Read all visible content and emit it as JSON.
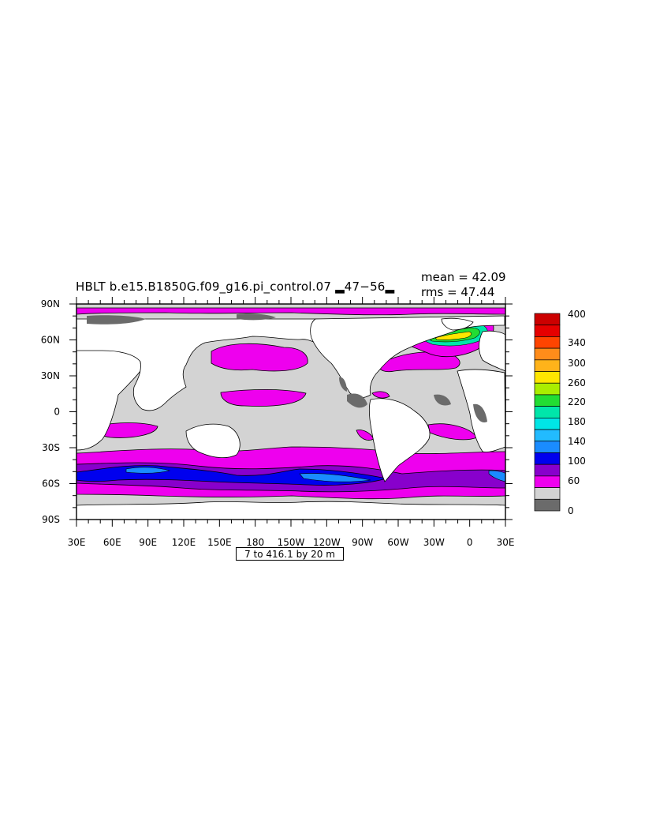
{
  "title": "HBLT b.e15.B1850G.f09_g16.pi_control.07 ▂47−56▂",
  "stats": {
    "mean": "mean = 42.09",
    "rms": "rms = 47.44"
  },
  "info_box": "7 to 416.1 by 20 m",
  "lon_labels": [
    "30E",
    "60E",
    "90E",
    "120E",
    "150E",
    "180",
    "150W",
    "120W",
    "90W",
    "60W",
    "30W",
    "0",
    "30E"
  ],
  "lat_labels": [
    "90N",
    "60N",
    "30N",
    "0",
    "30S",
    "60S",
    "90S"
  ],
  "colorbar": {
    "labels": [
      "400",
      "340",
      "300",
      "260",
      "220",
      "180",
      "140",
      "100",
      "60",
      "0"
    ],
    "colors": [
      "#cc0000",
      "#e60000",
      "#ff4400",
      "#ff8c1a",
      "#ffb31a",
      "#ffe600",
      "#aaee00",
      "#22dd33",
      "#00e6aa",
      "#00e6e6",
      "#22bbff",
      "#1a8cff",
      "#0000ee",
      "#8800cc",
      "#ee00ee",
      "#d3d3d3",
      "#6b6b6b"
    ]
  },
  "map_colors": {
    "ocean_low": "#d3d3d3",
    "ocean_60": "#ee00ee",
    "ocean_80": "#8800cc",
    "ocean_100": "#0000ee",
    "ocean_120": "#1a8cff",
    "ice": "#6b6b6b",
    "land": "#ffffff"
  },
  "map_data": {
    "projection": "cylindrical-equidistant",
    "lon_range": [
      "30E",
      "30E"
    ],
    "lat_range": [
      "90S",
      "90N"
    ],
    "variable": "HBLT",
    "units": "m"
  }
}
